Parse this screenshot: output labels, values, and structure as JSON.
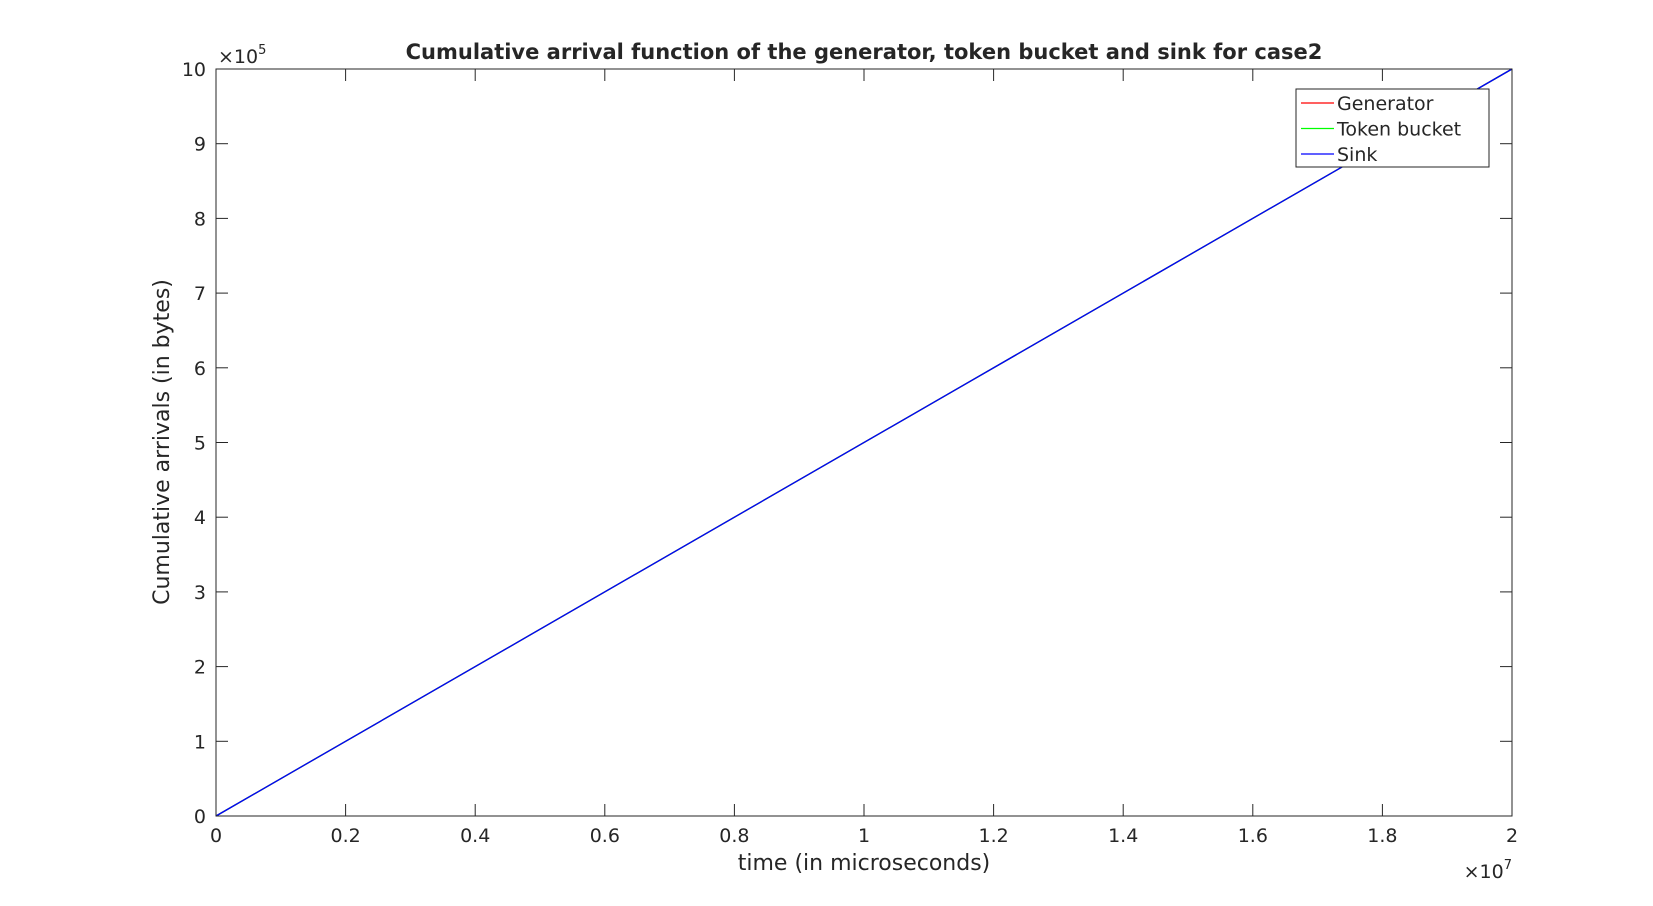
{
  "chart_data": {
    "type": "line",
    "title": "Cumulative arrival function of the generator, token bucket and sink for case2",
    "xlabel": "time (in microseconds)",
    "ylabel": "Cumulative arrivals (in bytes)",
    "xlim": [
      0,
      20000000
    ],
    "ylim": [
      0,
      1000000
    ],
    "x_exponent_label": "×10",
    "x_exponent_power": "7",
    "y_exponent_label": "×10",
    "y_exponent_power": "5",
    "x_ticks": [
      0,
      2000000,
      4000000,
      6000000,
      8000000,
      10000000,
      12000000,
      14000000,
      16000000,
      18000000,
      20000000
    ],
    "x_tick_labels": [
      "0",
      "0.2",
      "0.4",
      "0.6",
      "0.8",
      "1",
      "1.2",
      "1.4",
      "1.6",
      "1.8",
      "2"
    ],
    "y_ticks": [
      0,
      100000,
      200000,
      300000,
      400000,
      500000,
      600000,
      700000,
      800000,
      900000,
      1000000
    ],
    "y_tick_labels": [
      "0",
      "1",
      "2",
      "3",
      "4",
      "5",
      "6",
      "7",
      "8",
      "9",
      "10"
    ],
    "grid": false,
    "legend_position": "top-right",
    "series": [
      {
        "name": "Generator",
        "color": "#ff0000",
        "x": [
          0,
          20000000
        ],
        "y": [
          0,
          1000000
        ]
      },
      {
        "name": "Token bucket",
        "color": "#00ff00",
        "x": [
          0,
          20000000
        ],
        "y": [
          0,
          1000000
        ]
      },
      {
        "name": "Sink",
        "color": "#0000ff",
        "x": [
          0,
          20000000
        ],
        "y": [
          0,
          1000000
        ]
      }
    ]
  }
}
